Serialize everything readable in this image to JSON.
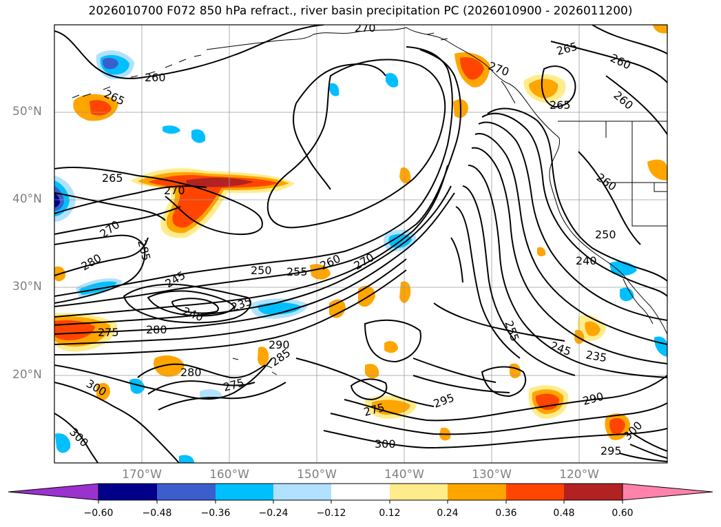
{
  "title": "2026010700 F072 850 hPa refract., river basin precipitation PC (2026010900 - 2026011200)",
  "lat_labels": [
    "50°N",
    "40°N",
    "30°N",
    "20°N"
  ],
  "lon_labels": [
    "170°W",
    "160°W",
    "150°W",
    "140°W",
    "130°W",
    "120°W"
  ],
  "colorbar": {
    "tick_labels": [
      "−0.60",
      "−0.48",
      "−0.36",
      "−0.24",
      "−0.12",
      "0.12",
      "0.24",
      "0.36",
      "0.48",
      "0.60"
    ],
    "colors": [
      "#9a32cd",
      "#00008b",
      "#3a5fcd",
      "#00bfff",
      "#b0e2ff",
      "#ffffff",
      "#ffec8b",
      "#ffa500",
      "#ff4500",
      "#b22222",
      "#ff82ab"
    ]
  },
  "contour_labels": [
    {
      "text": "270"
    },
    {
      "text": "265"
    },
    {
      "text": "260"
    },
    {
      "text": "265"
    },
    {
      "text": "270"
    },
    {
      "text": "265"
    },
    {
      "text": "260"
    },
    {
      "text": "260"
    },
    {
      "text": "265"
    },
    {
      "text": "270"
    },
    {
      "text": "270"
    },
    {
      "text": "285"
    },
    {
      "text": "280"
    },
    {
      "text": "260"
    },
    {
      "text": "250"
    },
    {
      "text": "255"
    },
    {
      "text": "260"
    },
    {
      "text": "270"
    },
    {
      "text": "245"
    },
    {
      "text": "240"
    },
    {
      "text": "235"
    },
    {
      "text": "280"
    },
    {
      "text": "275"
    },
    {
      "text": "290"
    },
    {
      "text": "285"
    },
    {
      "text": "280"
    },
    {
      "text": "275"
    },
    {
      "text": "300"
    },
    {
      "text": "300"
    },
    {
      "text": "275"
    },
    {
      "text": "295"
    },
    {
      "text": "300"
    },
    {
      "text": "250"
    },
    {
      "text": "240"
    },
    {
      "text": "245"
    },
    {
      "text": "235"
    },
    {
      "text": "290"
    },
    {
      "text": "295"
    },
    {
      "text": "300"
    },
    {
      "text": "255"
    }
  ]
}
